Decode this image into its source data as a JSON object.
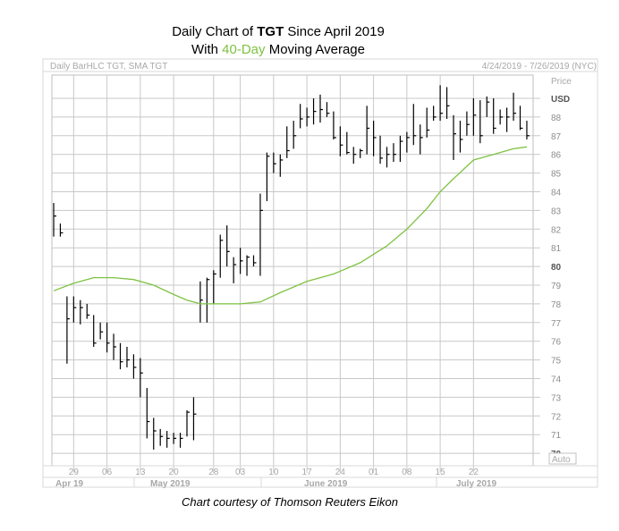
{
  "title": {
    "line1_pre": "Daily Chart of ",
    "line1_bold": "TGT",
    "line1_post": " Since April 2019",
    "line2_pre": "With ",
    "line2_green": "40-Day",
    "line2_post": " Moving Average"
  },
  "header": {
    "left": "Daily BarHLC TGT, SMA TGT",
    "right": "4/24/2019 - 7/26/2019 (NYC)"
  },
  "axis": {
    "price_label": "Price",
    "unit_label": "USD",
    "auto_label": "Auto"
  },
  "credit": "Chart courtesy of Thomson Reuters Eikon",
  "colors": {
    "sma": "#7ec242",
    "bars": "#000000",
    "grid": "#c8c8c8"
  },
  "chart_data": {
    "type": "bar",
    "subtype": "HLC",
    "ylim": [
      69.5,
      90.5
    ],
    "yticks": [
      70,
      71,
      72,
      73,
      74,
      75,
      76,
      77,
      78,
      79,
      80,
      81,
      82,
      83,
      84,
      85,
      86,
      87,
      88,
      "USD"
    ],
    "bold_yticks": [
      70,
      80
    ],
    "x_tick_labels": [
      "29",
      "06",
      "13",
      "20",
      "28",
      "03",
      "10",
      "17",
      "24",
      "01",
      "08",
      "15",
      "22"
    ],
    "month_labels": [
      "Apr 19",
      "May 2019",
      "June 2019",
      "July 2019"
    ],
    "series": [
      {
        "name": "TGT",
        "bars": [
          {
            "h": 83.4,
            "l": 81.6,
            "c": 82.7
          },
          {
            "h": 82.3,
            "l": 81.6,
            "c": 81.8
          },
          {
            "h": 78.4,
            "l": 74.8,
            "c": 77.2
          },
          {
            "h": 78.4,
            "l": 77.0,
            "c": 77.8
          },
          {
            "h": 78.2,
            "l": 76.9,
            "c": 77.8
          },
          {
            "h": 78.0,
            "l": 77.2,
            "c": 77.4
          },
          {
            "h": 77.4,
            "l": 75.7,
            "c": 75.9
          },
          {
            "h": 77.0,
            "l": 76.1,
            "c": 76.5
          },
          {
            "h": 77.0,
            "l": 75.4,
            "c": 75.9
          },
          {
            "h": 76.4,
            "l": 75.0,
            "c": 75.7
          },
          {
            "h": 75.9,
            "l": 74.5,
            "c": 74.9
          },
          {
            "h": 75.7,
            "l": 74.6,
            "c": 75.0
          },
          {
            "h": 75.3,
            "l": 74.0,
            "c": 74.6
          },
          {
            "h": 75.1,
            "l": 73.0,
            "c": 74.3
          },
          {
            "h": 73.5,
            "l": 70.8,
            "c": 71.7
          },
          {
            "h": 71.9,
            "l": 70.2,
            "c": 71.2
          },
          {
            "h": 71.3,
            "l": 70.4,
            "c": 70.9
          },
          {
            "h": 71.2,
            "l": 70.3,
            "c": 70.8
          },
          {
            "h": 71.1,
            "l": 70.5,
            "c": 70.8
          },
          {
            "h": 71.1,
            "l": 70.3,
            "c": 70.8
          },
          {
            "h": 72.3,
            "l": 70.9,
            "c": 72.2
          },
          {
            "h": 73.0,
            "l": 70.7,
            "c": 72.1
          },
          {
            "h": 79.2,
            "l": 77.0,
            "c": 78.2
          },
          {
            "h": 79.4,
            "l": 77.0,
            "c": 79.3
          },
          {
            "h": 79.8,
            "l": 78.0,
            "c": 79.6
          },
          {
            "h": 81.7,
            "l": 79.4,
            "c": 81.4
          },
          {
            "h": 82.2,
            "l": 80.0,
            "c": 80.8
          },
          {
            "h": 80.5,
            "l": 79.1,
            "c": 80.1
          },
          {
            "h": 81.0,
            "l": 79.6,
            "c": 80.3
          },
          {
            "h": 80.6,
            "l": 79.5,
            "c": 80.5
          },
          {
            "h": 80.6,
            "l": 80.0,
            "c": 80.2
          },
          {
            "h": 83.9,
            "l": 79.5,
            "c": 83.0
          },
          {
            "h": 86.1,
            "l": 83.5,
            "c": 85.9
          },
          {
            "h": 86.1,
            "l": 85.0,
            "c": 85.5
          },
          {
            "h": 86.0,
            "l": 84.8,
            "c": 85.7
          },
          {
            "h": 87.5,
            "l": 85.8,
            "c": 86.2
          },
          {
            "h": 87.8,
            "l": 86.3,
            "c": 87.0
          },
          {
            "h": 88.7,
            "l": 87.4,
            "c": 87.9
          },
          {
            "h": 88.5,
            "l": 87.5,
            "c": 88.0
          },
          {
            "h": 89.0,
            "l": 87.6,
            "c": 88.3
          },
          {
            "h": 89.2,
            "l": 87.7,
            "c": 88.4
          },
          {
            "h": 88.8,
            "l": 88.0,
            "c": 88.2
          },
          {
            "h": 88.3,
            "l": 86.8,
            "c": 86.9
          },
          {
            "h": 87.5,
            "l": 85.9,
            "c": 86.5
          },
          {
            "h": 87.2,
            "l": 86.0,
            "c": 86.1
          },
          {
            "h": 86.4,
            "l": 85.5,
            "c": 86.0
          },
          {
            "h": 86.3,
            "l": 85.8,
            "c": 86.2
          },
          {
            "h": 88.6,
            "l": 86.0,
            "c": 87.4
          },
          {
            "h": 87.8,
            "l": 85.9,
            "c": 86.9
          },
          {
            "h": 87.0,
            "l": 85.5,
            "c": 85.8
          },
          {
            "h": 86.4,
            "l": 85.3,
            "c": 86.0
          },
          {
            "h": 86.6,
            "l": 85.6,
            "c": 86.0
          },
          {
            "h": 87.0,
            "l": 85.6,
            "c": 86.7
          },
          {
            "h": 87.2,
            "l": 86.1,
            "c": 86.9
          },
          {
            "h": 88.7,
            "l": 86.5,
            "c": 87.0
          },
          {
            "h": 87.6,
            "l": 86.0,
            "c": 86.9
          },
          {
            "h": 88.5,
            "l": 86.9,
            "c": 87.3
          },
          {
            "h": 88.6,
            "l": 87.8,
            "c": 88.0
          },
          {
            "h": 89.7,
            "l": 87.8,
            "c": 88.2
          },
          {
            "h": 89.6,
            "l": 87.9,
            "c": 88.6
          },
          {
            "h": 88.1,
            "l": 85.7,
            "c": 87.1
          },
          {
            "h": 87.8,
            "l": 86.1,
            "c": 86.8
          },
          {
            "h": 88.3,
            "l": 87.0,
            "c": 87.6
          },
          {
            "h": 89.0,
            "l": 87.0,
            "c": 88.1
          },
          {
            "h": 88.9,
            "l": 86.6,
            "c": 87.0
          },
          {
            "h": 89.1,
            "l": 88.0,
            "c": 88.8
          },
          {
            "h": 89.0,
            "l": 87.1,
            "c": 87.4
          },
          {
            "h": 88.4,
            "l": 87.6,
            "c": 88.0
          },
          {
            "h": 88.5,
            "l": 87.2,
            "c": 88.0
          },
          {
            "h": 89.3,
            "l": 87.8,
            "c": 88.2
          },
          {
            "h": 88.6,
            "l": 87.3,
            "c": 87.4
          },
          {
            "h": 87.8,
            "l": 86.8,
            "c": 87.0
          }
        ]
      },
      {
        "name": "SMA TGT",
        "type": "line",
        "x": [
          0,
          3,
          6,
          9,
          12,
          15,
          18,
          20,
          22,
          25,
          28,
          31,
          34,
          38,
          42,
          46,
          50,
          53,
          56,
          58,
          60,
          63,
          66,
          69,
          71
        ],
        "values": [
          78.7,
          79.1,
          79.4,
          79.4,
          79.3,
          79.0,
          78.5,
          78.2,
          78.0,
          78.0,
          78.0,
          78.1,
          78.6,
          79.2,
          79.6,
          80.2,
          81.1,
          82.0,
          83.1,
          84.0,
          84.7,
          85.7,
          86.0,
          86.3,
          86.4
        ]
      }
    ]
  }
}
